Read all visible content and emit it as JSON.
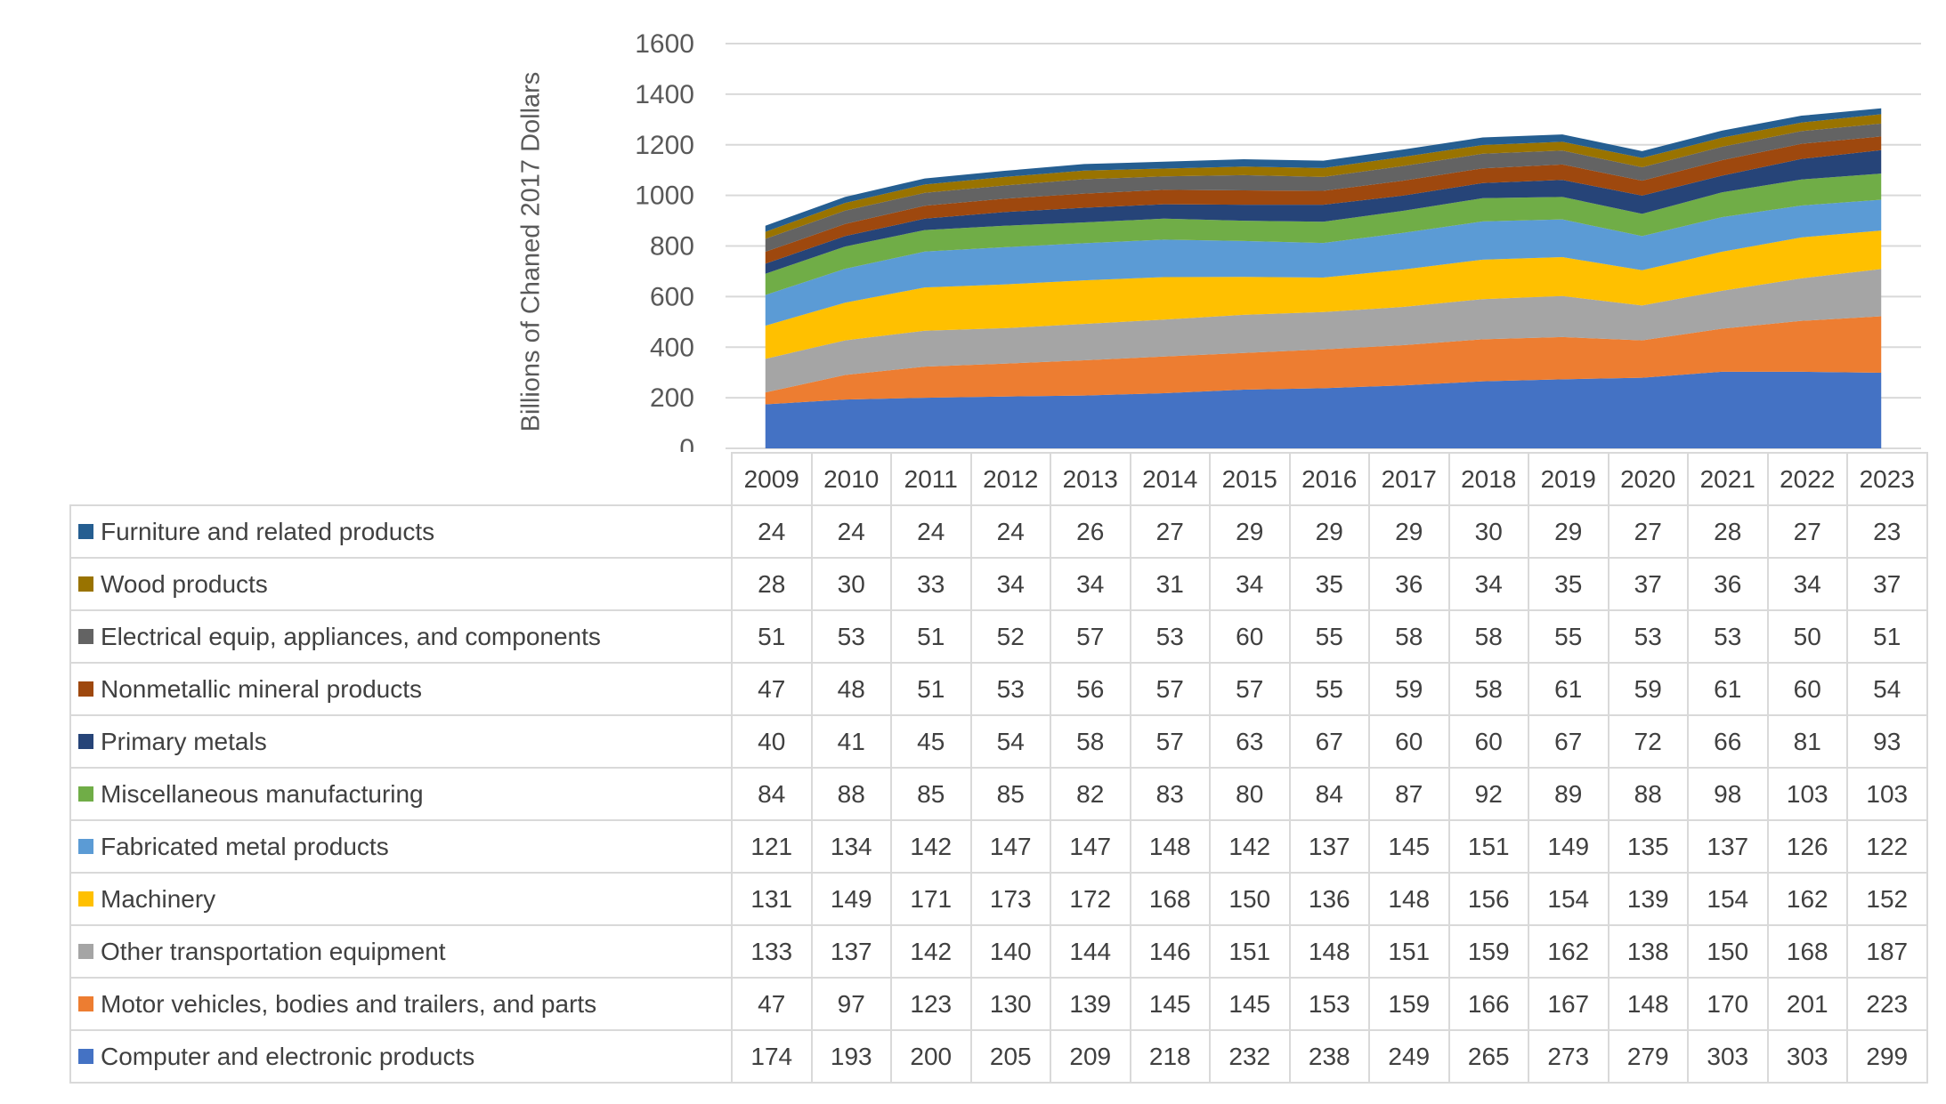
{
  "chart_data": {
    "type": "area",
    "stacked": true,
    "title": "",
    "xlabel": "",
    "ylabel": "Billions of Chaned 2017 Dollars",
    "ylim": [
      0,
      1600
    ],
    "yticks": [
      0,
      200,
      400,
      600,
      800,
      1000,
      1200,
      1400,
      1600
    ],
    "grid": true,
    "legend": "data-table-below",
    "categories": [
      "2009",
      "2010",
      "2011",
      "2012",
      "2013",
      "2014",
      "2015",
      "2016",
      "2017",
      "2018",
      "2019",
      "2020",
      "2021",
      "2022",
      "2023"
    ],
    "series": [
      {
        "name": "Computer and electronic products",
        "color": "#4472C4",
        "values": [
          174,
          193,
          200,
          205,
          209,
          218,
          232,
          238,
          249,
          265,
          273,
          279,
          303,
          303,
          299
        ]
      },
      {
        "name": "Motor vehicles, bodies and trailers, and parts",
        "color": "#ED7D31",
        "values": [
          47,
          97,
          123,
          130,
          139,
          145,
          145,
          153,
          159,
          166,
          167,
          148,
          170,
          201,
          223
        ]
      },
      {
        "name": "Other transportation equipment",
        "color": "#A5A5A5",
        "values": [
          133,
          137,
          142,
          140,
          144,
          146,
          151,
          148,
          151,
          159,
          162,
          138,
          150,
          168,
          187
        ]
      },
      {
        "name": "Machinery",
        "color": "#FFC000",
        "values": [
          131,
          149,
          171,
          173,
          172,
          168,
          150,
          136,
          148,
          156,
          154,
          139,
          154,
          162,
          152
        ]
      },
      {
        "name": "Fabricated metal products",
        "color": "#5B9BD5",
        "values": [
          121,
          134,
          142,
          147,
          147,
          148,
          142,
          137,
          145,
          151,
          149,
          135,
          137,
          126,
          122
        ]
      },
      {
        "name": "Miscellaneous manufacturing",
        "color": "#70AD47",
        "values": [
          84,
          88,
          85,
          85,
          82,
          83,
          80,
          84,
          87,
          92,
          89,
          88,
          98,
          103,
          103
        ]
      },
      {
        "name": "Primary metals",
        "color": "#264478",
        "values": [
          40,
          41,
          45,
          54,
          58,
          57,
          63,
          67,
          60,
          60,
          67,
          72,
          66,
          81,
          93
        ]
      },
      {
        "name": "Nonmetallic mineral products",
        "color": "#9E480E",
        "values": [
          47,
          48,
          51,
          53,
          56,
          57,
          57,
          55,
          59,
          58,
          61,
          59,
          61,
          60,
          54
        ]
      },
      {
        "name": "Electrical equip, appliances, and components",
        "color": "#636363",
        "values": [
          51,
          53,
          51,
          52,
          57,
          53,
          60,
          55,
          58,
          58,
          55,
          53,
          53,
          50,
          51
        ]
      },
      {
        "name": "Wood products",
        "color": "#997300",
        "values": [
          28,
          30,
          33,
          34,
          34,
          31,
          34,
          35,
          36,
          34,
          35,
          37,
          36,
          34,
          37
        ]
      },
      {
        "name": "Furniture and related products",
        "color": "#255E91",
        "values": [
          24,
          24,
          24,
          24,
          26,
          27,
          29,
          29,
          29,
          30,
          29,
          27,
          28,
          27,
          23
        ]
      }
    ]
  }
}
